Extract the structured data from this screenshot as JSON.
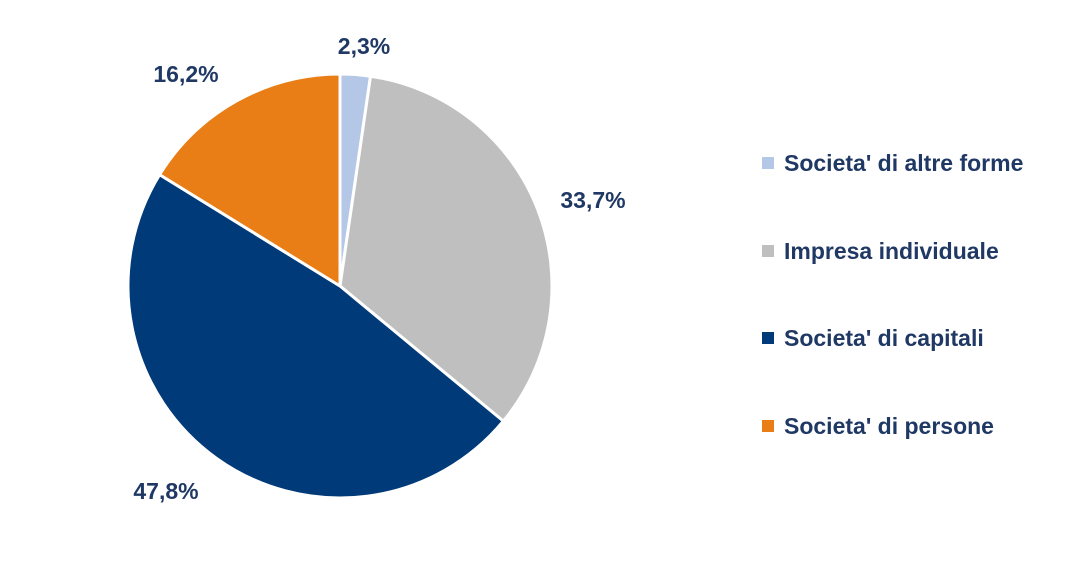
{
  "chart_data": {
    "type": "pie",
    "title": "",
    "start_angle_deg": 0,
    "slices": [
      {
        "label": "Societa'  di altre forme",
        "value": 2.3,
        "display": "2,3%",
        "color": "#b4c7e7"
      },
      {
        "label": "Impresa individuale",
        "value": 33.7,
        "display": "33,7%",
        "color": "#bfbfbf"
      },
      {
        "label": "Societa' di capitali",
        "value": 47.8,
        "display": "47,8%",
        "color": "#003a78"
      },
      {
        "label": "Societa' di persone",
        "value": 16.2,
        "display": "16,2%",
        "color": "#e97e16"
      }
    ],
    "legend_position": "right",
    "label_color": "#1f3864"
  }
}
